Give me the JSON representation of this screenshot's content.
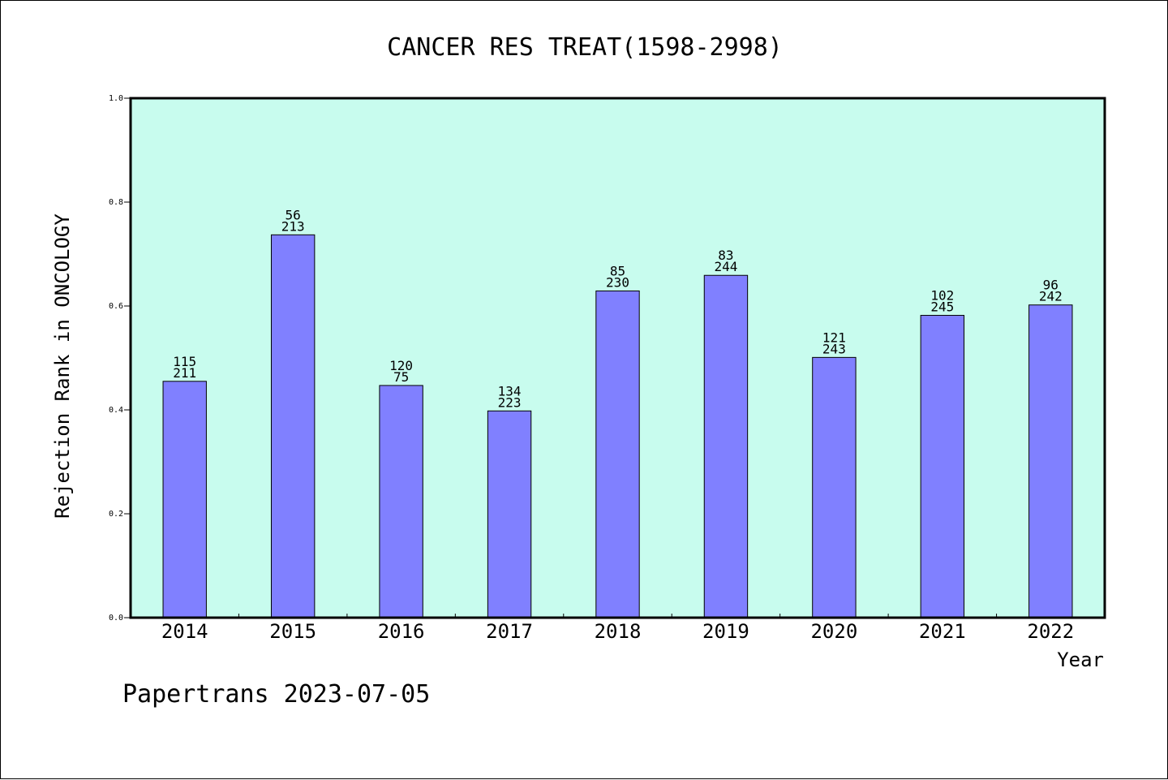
{
  "chart_data": {
    "type": "bar",
    "title": "CANCER RES TREAT(1598-2998)",
    "xlabel": "Year",
    "ylabel": "Rejection Rank in ONCOLOGY",
    "ylim": [
      0,
      1.0
    ],
    "yticks": [
      "0.0",
      "0.2",
      "0.4",
      "0.6",
      "0.8",
      "1.0"
    ],
    "categories": [
      "2014",
      "2015",
      "2016",
      "2017",
      "2018",
      "2019",
      "2020",
      "2021",
      "2022"
    ],
    "values": [
      0.455,
      0.737,
      0.447,
      0.398,
      0.629,
      0.659,
      0.501,
      0.582,
      0.602
    ],
    "labels_top": [
      "115",
      "56",
      "120",
      "134",
      "85",
      "83",
      "121",
      "102",
      "96"
    ],
    "labels_bottom": [
      "211",
      "213",
      "75",
      "223",
      "230",
      "244",
      "243",
      "245",
      "242"
    ],
    "grid": false,
    "colors": {
      "plot_background": "#c8fcee",
      "bar_fill": "#8080ff",
      "bar_stroke": "#000000"
    }
  },
  "footer": "Papertrans 2023-07-05"
}
